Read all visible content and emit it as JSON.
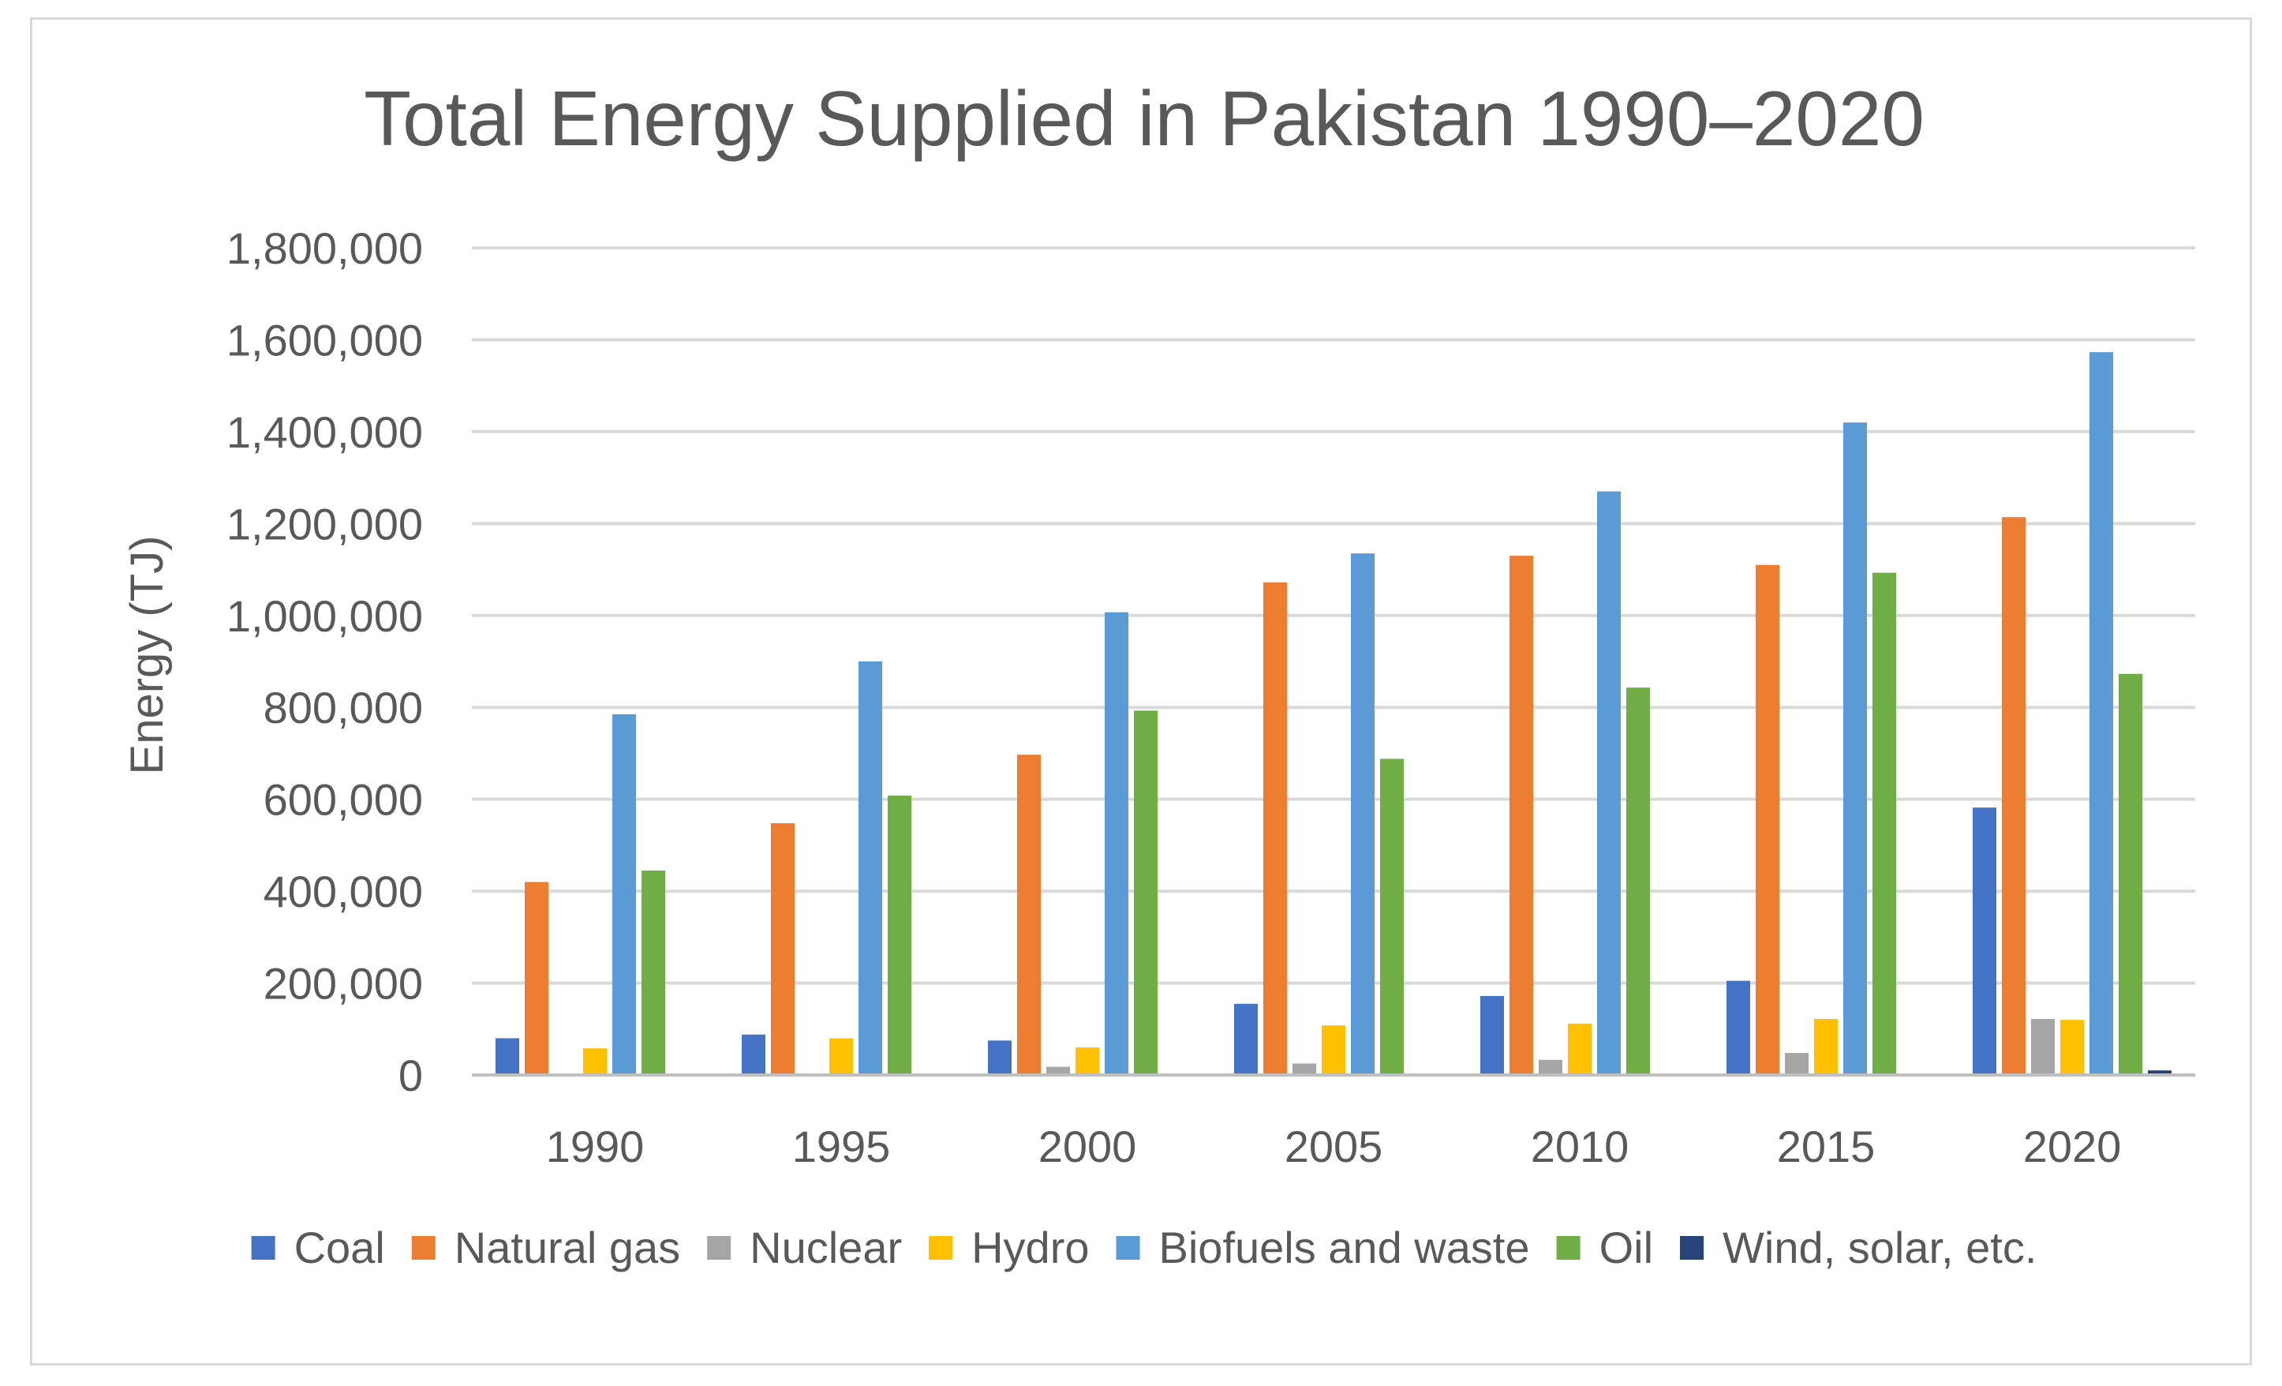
{
  "chart_data": {
    "type": "bar",
    "title": "Total Energy Supplied in Pakistan 1990–2020",
    "xlabel": "",
    "ylabel": "Energy (TJ)",
    "ylim": [
      0,
      1800000
    ],
    "yticks": [
      0,
      200000,
      400000,
      600000,
      800000,
      1000000,
      1200000,
      1400000,
      1600000,
      1800000
    ],
    "ytick_labels": [
      "0",
      "200,000",
      "400,000",
      "600,000",
      "800,000",
      "1,000,000",
      "1,200,000",
      "1,400,000",
      "1,600,000",
      "1,800,000"
    ],
    "grid": true,
    "legend_position": "bottom",
    "categories": [
      "1990",
      "1995",
      "2000",
      "2005",
      "2010",
      "2015",
      "2020"
    ],
    "series": [
      {
        "name": "Coal",
        "color": "#4472c4",
        "values": [
          80000,
          88000,
          75000,
          155000,
          172000,
          205000,
          582000
        ]
      },
      {
        "name": "Natural gas",
        "color": "#ed7d31",
        "values": [
          420000,
          548000,
          697000,
          1072000,
          1130000,
          1110000,
          1214000
        ]
      },
      {
        "name": "Nuclear",
        "color": "#a5a5a5",
        "values": [
          0,
          0,
          18000,
          25000,
          33000,
          48000,
          122000
        ]
      },
      {
        "name": "Hydro",
        "color": "#ffc000",
        "values": [
          58000,
          80000,
          60000,
          108000,
          112000,
          122000,
          120000
        ]
      },
      {
        "name": "Biofuels and waste",
        "color": "#5b9bd5",
        "values": [
          785000,
          900000,
          1007000,
          1135000,
          1270000,
          1420000,
          1573000
        ]
      },
      {
        "name": "Oil",
        "color": "#70ad47",
        "values": [
          445000,
          608000,
          793000,
          688000,
          843000,
          1093000,
          873000
        ]
      },
      {
        "name": "Wind, solar, etc.",
        "color": "#264478",
        "values": [
          0,
          0,
          0,
          0,
          0,
          0,
          10000
        ]
      }
    ]
  }
}
